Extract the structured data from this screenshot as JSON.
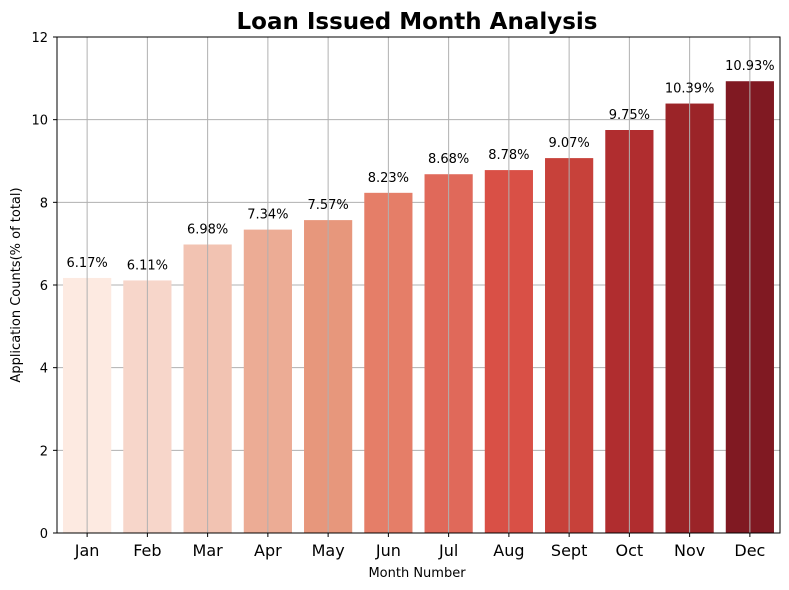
{
  "chart_data": {
    "type": "bar",
    "title": "Loan Issued Month Analysis",
    "xlabel": "Month Number",
    "ylabel": "Application Counts(% of total)",
    "categories": [
      "Jan",
      "Feb",
      "Mar",
      "Apr",
      "May",
      "Jun",
      "Jul",
      "Aug",
      "Sept",
      "Oct",
      "Nov",
      "Dec"
    ],
    "values": [
      6.17,
      6.11,
      6.98,
      7.34,
      7.57,
      8.23,
      8.68,
      8.78,
      9.07,
      9.75,
      10.39,
      10.93
    ],
    "data_labels": [
      "6.17%",
      "6.11%",
      "6.98%",
      "7.34%",
      "7.57%",
      "8.23%",
      "8.68%",
      "8.78%",
      "9.07%",
      "9.75%",
      "10.39%",
      "10.93%"
    ],
    "ylim": [
      0,
      12
    ],
    "yticks": [
      0,
      2,
      4,
      6,
      8,
      10,
      12
    ],
    "grid": true,
    "bar_colors": [
      "#fdeae1",
      "#f7d6ca",
      "#f2c3b2",
      "#ecac95",
      "#e7977c",
      "#e57e68",
      "#e0695a",
      "#d95046",
      "#c7413a",
      "#b02d2f",
      "#9b2428",
      "#801922"
    ]
  }
}
